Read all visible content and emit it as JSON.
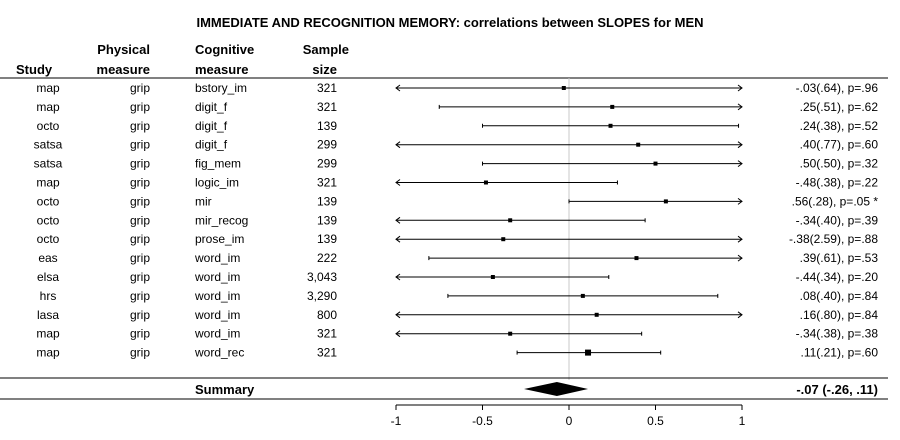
{
  "chart_data": {
    "type": "forest",
    "title": "IMMEDIATE AND RECOGNITION MEMORY: correlations between SLOPES for MEN",
    "columns": {
      "study": "Study",
      "physical": [
        "Physical",
        "measure"
      ],
      "cognitive": [
        "Cognitive",
        "measure"
      ],
      "sample": [
        "Sample",
        "size"
      ]
    },
    "xlim": [
      -1,
      1
    ],
    "ticks": [
      {
        "value": -1,
        "label": "-1"
      },
      {
        "value": -0.5,
        "label": "-0.5"
      },
      {
        "value": 0,
        "label": "0"
      },
      {
        "value": 0.5,
        "label": "0.5"
      },
      {
        "value": 1,
        "label": "1"
      }
    ],
    "rows": [
      {
        "study": "map",
        "physical": "grip",
        "cognitive": "bstory_im",
        "n": "321",
        "est": -0.03,
        "lo": -1.0,
        "hi": 1.0,
        "arrow_lo": true,
        "arrow_hi": true,
        "label": "-.03(.64), p=.96"
      },
      {
        "study": "map",
        "physical": "grip",
        "cognitive": "digit_f",
        "n": "321",
        "est": 0.25,
        "lo": -0.75,
        "hi": 1.0,
        "arrow_lo": false,
        "arrow_hi": true,
        "label": ".25(.51), p=.62"
      },
      {
        "study": "octo",
        "physical": "grip",
        "cognitive": "digit_f",
        "n": "139",
        "est": 0.24,
        "lo": -0.5,
        "hi": 0.98,
        "arrow_lo": false,
        "arrow_hi": false,
        "label": ".24(.38), p=.52"
      },
      {
        "study": "satsa",
        "physical": "grip",
        "cognitive": "digit_f",
        "n": "299",
        "est": 0.4,
        "lo": -1.0,
        "hi": 1.0,
        "arrow_lo": true,
        "arrow_hi": true,
        "label": ".40(.77), p=.60"
      },
      {
        "study": "satsa",
        "physical": "grip",
        "cognitive": "fig_mem",
        "n": "299",
        "est": 0.5,
        "lo": -0.5,
        "hi": 1.0,
        "arrow_lo": false,
        "arrow_hi": true,
        "label": ".50(.50), p=.32"
      },
      {
        "study": "map",
        "physical": "grip",
        "cognitive": "logic_im",
        "n": "321",
        "est": -0.48,
        "lo": -1.0,
        "hi": 0.28,
        "arrow_lo": true,
        "arrow_hi": false,
        "label": "-.48(.38), p=.22"
      },
      {
        "study": "octo",
        "physical": "grip",
        "cognitive": "mir",
        "n": "139",
        "est": 0.56,
        "lo": 0.0,
        "hi": 1.0,
        "arrow_lo": false,
        "arrow_hi": true,
        "label": ".56(.28), p=.05 *"
      },
      {
        "study": "octo",
        "physical": "grip",
        "cognitive": "mir_recog",
        "n": "139",
        "est": -0.34,
        "lo": -1.0,
        "hi": 0.44,
        "arrow_lo": true,
        "arrow_hi": false,
        "label": "-.34(.40), p=.39"
      },
      {
        "study": "octo",
        "physical": "grip",
        "cognitive": "prose_im",
        "n": "139",
        "est": -0.38,
        "lo": -1.0,
        "hi": 1.0,
        "arrow_lo": true,
        "arrow_hi": true,
        "label": "-.38(2.59), p=.88"
      },
      {
        "study": "eas",
        "physical": "grip",
        "cognitive": "word_im",
        "n": "222",
        "est": 0.39,
        "lo": -0.81,
        "hi": 1.0,
        "arrow_lo": false,
        "arrow_hi": true,
        "label": ".39(.61), p=.53"
      },
      {
        "study": "elsa",
        "physical": "grip",
        "cognitive": "word_im",
        "n": "3,043",
        "est": -0.44,
        "lo": -1.0,
        "hi": 0.23,
        "arrow_lo": true,
        "arrow_hi": false,
        "label": "-.44(.34), p=.20"
      },
      {
        "study": "hrs",
        "physical": "grip",
        "cognitive": "word_im",
        "n": "3,290",
        "est": 0.08,
        "lo": -0.7,
        "hi": 0.86,
        "arrow_lo": false,
        "arrow_hi": false,
        "label": ".08(.40), p=.84"
      },
      {
        "study": "lasa",
        "physical": "grip",
        "cognitive": "word_im",
        "n": "800",
        "est": 0.16,
        "lo": -1.0,
        "hi": 1.0,
        "arrow_lo": true,
        "arrow_hi": true,
        "label": ".16(.80), p=.84"
      },
      {
        "study": "map",
        "physical": "grip",
        "cognitive": "word_im",
        "n": "321",
        "est": -0.34,
        "lo": -1.0,
        "hi": 0.42,
        "arrow_lo": true,
        "arrow_hi": false,
        "label": "-.34(.38), p=.38"
      },
      {
        "study": "map",
        "physical": "grip",
        "cognitive": "word_rec",
        "n": "321",
        "est": 0.11,
        "lo": -0.3,
        "hi": 0.53,
        "arrow_lo": false,
        "arrow_hi": false,
        "label": ".11(.21), p=.60"
      }
    ],
    "summary": {
      "label": "Summary",
      "est": -0.07,
      "lo": -0.26,
      "hi": 0.11,
      "text": "-.07 (-.26, .11)"
    }
  }
}
